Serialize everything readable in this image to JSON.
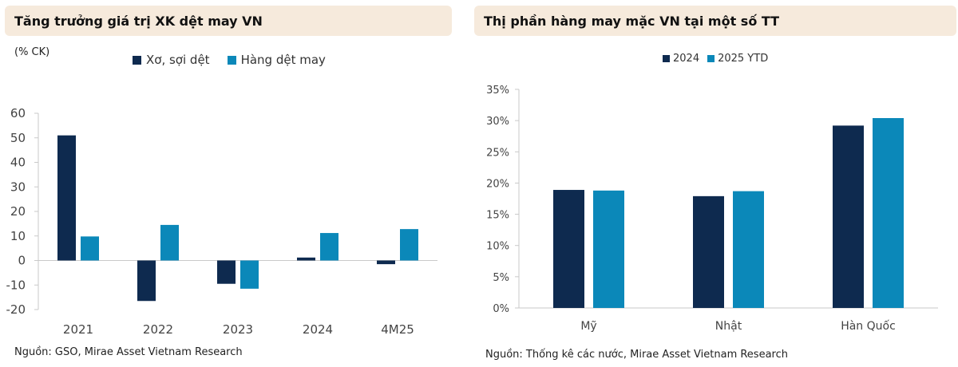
{
  "left": {
    "title": "Tăng trưởng giá trị XK dệt may VN",
    "unit": "(% CK)",
    "source": "Nguồn: GSO, Mirae Asset Vietnam Research"
  },
  "right": {
    "title": "Thị phần hàng may mặc VN tại một số TT",
    "source": "Nguồn: Thống kê các nước, Mirae Asset Vietnam Research"
  },
  "colors": {
    "dark": "#0e2a4f",
    "light": "#0b88b9",
    "title_bg": "#f6eadc"
  },
  "chart_data": [
    {
      "type": "bar",
      "title": "Tăng trưởng giá trị XK dệt may VN",
      "ylabel": "(% CK)",
      "categories": [
        "2021",
        "2022",
        "2023",
        "2024",
        "4M25"
      ],
      "series": [
        {
          "name": "Xơ, sợi dệt",
          "values": [
            51,
            -16.5,
            -9.5,
            1.2,
            -1.5
          ]
        },
        {
          "name": "Hàng dệt may",
          "values": [
            9.8,
            14.5,
            -11.5,
            11.2,
            12.8
          ]
        }
      ],
      "ylim": [
        -20,
        60
      ],
      "yticks": [
        "60",
        "50",
        "40",
        "30",
        "20",
        "10",
        "0",
        "-10",
        "-20"
      ],
      "legend": "top",
      "grid": false
    },
    {
      "type": "bar",
      "title": "Thị phần hàng may mặc VN tại một số TT",
      "categories": [
        "Mỹ",
        "Nhật",
        "Hàn Quốc"
      ],
      "series": [
        {
          "name": "2024",
          "values": [
            18.9,
            17.9,
            29.2
          ]
        },
        {
          "name": "2025 YTD",
          "values": [
            18.8,
            18.7,
            30.4
          ]
        }
      ],
      "ylim": [
        0,
        35
      ],
      "yticks": [
        "35%",
        "30%",
        "25%",
        "20%",
        "15%",
        "10%",
        "5%",
        "0%"
      ],
      "legend": "top",
      "grid": false
    }
  ]
}
